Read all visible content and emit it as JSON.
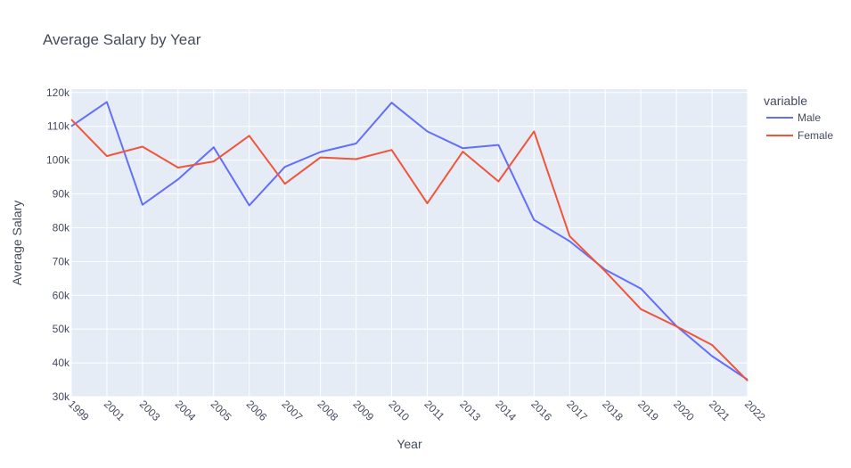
{
  "chart_data": {
    "type": "line",
    "title": "Average Salary by Year",
    "xlabel": "Year",
    "ylabel": "Average Salary",
    "categories": [
      "1999",
      "2001",
      "2003",
      "2004",
      "2005",
      "2006",
      "2007",
      "2008",
      "2009",
      "2010",
      "2011",
      "2013",
      "2014",
      "2016",
      "2017",
      "2018",
      "2019",
      "2020",
      "2021",
      "2022"
    ],
    "ylim": [
      30000,
      121000
    ],
    "yticks": [
      30000,
      40000,
      50000,
      60000,
      70000,
      80000,
      90000,
      100000,
      110000,
      120000
    ],
    "ytick_labels": [
      "30k",
      "40k",
      "50k",
      "60k",
      "70k",
      "80k",
      "90k",
      "100k",
      "110k",
      "120k"
    ],
    "legend_title": "variable",
    "legend_position": "right",
    "grid": true,
    "background_color": "#e5ecf6",
    "series": [
      {
        "name": "Male",
        "color": "#636efa",
        "values": [
          110000,
          117200,
          86800,
          94300,
          103800,
          86600,
          98000,
          102400,
          104900,
          117000,
          108500,
          103500,
          104500,
          82300,
          76000,
          67600,
          62000,
          50900,
          42000,
          35000
        ]
      },
      {
        "name": "Female",
        "color": "#ef553b",
        "values": [
          112000,
          101200,
          104000,
          97800,
          99600,
          107200,
          93000,
          100800,
          100300,
          103000,
          87200,
          102500,
          93700,
          108500,
          77500,
          67100,
          55900,
          50800,
          45300,
          34700
        ]
      }
    ]
  }
}
